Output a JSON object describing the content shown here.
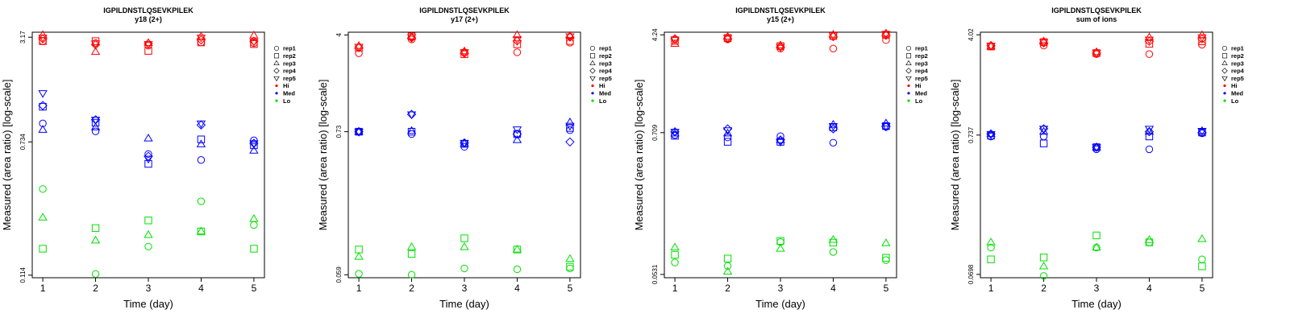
{
  "colors": {
    "Hi": "#ff0000",
    "Med": "#0000ff",
    "Lo": "#00e000"
  },
  "shape_icons": {
    "rep1": "open-circle",
    "rep2": "open-square",
    "rep3": "open-triangle-up",
    "rep4": "open-diamond",
    "rep5": "open-triangle-down",
    "Hi": "filled-dot",
    "Med": "filled-dot",
    "Lo": "filled-dot"
  },
  "chart_data": [
    {
      "type": "scatter",
      "title": "IGPILDNSTLQSEVKPILEK",
      "subtitle": "y18 (2+)",
      "xlabel": "Time (day)",
      "ylabel": "Measured (area ratio) [log-scale]",
      "log_y": true,
      "xlim": [
        0.8,
        5.2
      ],
      "ylim": [
        0.11,
        3.4
      ],
      "x_ticks": [
        1,
        2,
        3,
        4,
        5
      ],
      "y_ticks": [
        0.114,
        0.734,
        3.17
      ],
      "y_tick_labels": [
        "0.114",
        "0.734",
        "3.17"
      ],
      "grid": false,
      "legend": [
        "rep1",
        "rep2",
        "rep3",
        "rep4",
        "rep5",
        "Hi",
        "Med",
        "Lo"
      ],
      "legend_position": "right",
      "series": [
        {
          "rep": "rep1",
          "level": "Hi",
          "x": [
            1,
            2,
            3,
            4,
            5
          ],
          "y": [
            3.0,
            2.92,
            2.82,
            2.95,
            2.92
          ]
        },
        {
          "rep": "rep2",
          "level": "Hi",
          "x": [
            1,
            2,
            3,
            4,
            5
          ],
          "y": [
            3.0,
            3.0,
            2.62,
            2.95,
            2.88
          ]
        },
        {
          "rep": "rep3",
          "level": "Hi",
          "x": [
            1,
            2,
            3,
            4,
            5
          ],
          "y": [
            3.27,
            2.58,
            2.92,
            3.2,
            3.25
          ]
        },
        {
          "rep": "rep4",
          "level": "Hi",
          "x": [
            1,
            2,
            3,
            4,
            5
          ],
          "y": [
            3.1,
            2.85,
            2.9,
            3.05,
            3.0
          ]
        },
        {
          "rep": "rep5",
          "level": "Hi",
          "x": [
            1,
            2,
            3,
            4,
            5
          ],
          "y": [
            3.15,
            2.9,
            2.88,
            3.15,
            2.98
          ]
        },
        {
          "rep": "rep1",
          "level": "Med",
          "x": [
            1,
            2,
            3,
            4,
            5
          ],
          "y": [
            0.95,
            0.85,
            0.62,
            0.57,
            0.75
          ]
        },
        {
          "rep": "rep2",
          "level": "Med",
          "x": [
            1,
            2,
            3,
            4,
            5
          ],
          "y": [
            1.2,
            0.96,
            0.54,
            0.76,
            0.7
          ]
        },
        {
          "rep": "rep3",
          "level": "Med",
          "x": [
            1,
            2,
            3,
            4,
            5
          ],
          "y": [
            0.87,
            0.9,
            0.77,
            0.71,
            0.65
          ]
        },
        {
          "rep": "rep4",
          "level": "Med",
          "x": [
            1,
            2,
            3,
            4,
            5
          ],
          "y": [
            1.22,
            1.0,
            0.6,
            0.93,
            0.72
          ]
        },
        {
          "rep": "rep5",
          "level": "Med",
          "x": [
            1,
            2,
            3,
            4,
            5
          ],
          "y": [
            1.45,
            1.0,
            0.58,
            0.95,
            0.72
          ]
        },
        {
          "rep": "rep1",
          "level": "Lo",
          "x": [
            1,
            2,
            3,
            4,
            5
          ],
          "y": [
            0.38,
            0.116,
            0.17,
            0.32,
            0.23
          ]
        },
        {
          "rep": "rep2",
          "level": "Lo",
          "x": [
            1,
            2,
            3,
            4,
            5
          ],
          "y": [
            0.165,
            0.22,
            0.245,
            0.21,
            0.165
          ]
        },
        {
          "rep": "rep3",
          "level": "Lo",
          "x": [
            1,
            2,
            3,
            4,
            5
          ],
          "y": [
            0.255,
            0.185,
            0.2,
            0.21,
            0.25
          ]
        }
      ]
    },
    {
      "type": "scatter",
      "title": "IGPILDNSTLQSEVKPILEK",
      "subtitle": "y17 (2+)",
      "xlabel": "Time (day)",
      "ylabel": "Measured (area ratio) [log-scale]",
      "log_y": true,
      "xlim": [
        0.8,
        5.2
      ],
      "ylim": [
        0.056,
        4.2
      ],
      "x_ticks": [
        1,
        2,
        3,
        4,
        5
      ],
      "y_ticks": [
        0.059,
        0.73,
        4
      ],
      "y_tick_labels": [
        "0.059",
        "0.73",
        "4"
      ],
      "grid": false,
      "legend": [
        "rep1",
        "rep2",
        "rep3",
        "rep4",
        "rep5",
        "Hi",
        "Med",
        "Lo"
      ],
      "legend_position": "right",
      "series": [
        {
          "rep": "rep1",
          "level": "Hi",
          "x": [
            1,
            2,
            3,
            4,
            5
          ],
          "y": [
            2.9,
            3.7,
            2.95,
            2.95,
            3.5
          ]
        },
        {
          "rep": "rep2",
          "level": "Hi",
          "x": [
            1,
            2,
            3,
            4,
            5
          ],
          "y": [
            3.2,
            3.9,
            2.85,
            3.4,
            3.6
          ]
        },
        {
          "rep": "rep3",
          "level": "Hi",
          "x": [
            1,
            2,
            3,
            4,
            5
          ],
          "y": [
            3.3,
            3.9,
            3.0,
            4.0,
            3.95
          ]
        },
        {
          "rep": "rep4",
          "level": "Hi",
          "x": [
            1,
            2,
            3,
            4,
            5
          ],
          "y": [
            3.2,
            3.8,
            2.9,
            3.6,
            3.85
          ]
        },
        {
          "rep": "rep5",
          "level": "Hi",
          "x": [
            1,
            2,
            3,
            4,
            5
          ],
          "y": [
            3.25,
            3.85,
            2.95,
            3.7,
            3.9
          ]
        },
        {
          "rep": "rep1",
          "level": "Med",
          "x": [
            1,
            2,
            3,
            4,
            5
          ],
          "y": [
            0.73,
            0.7,
            0.56,
            0.7,
            0.75
          ]
        },
        {
          "rep": "rep2",
          "level": "Med",
          "x": [
            1,
            2,
            3,
            4,
            5
          ],
          "y": [
            0.73,
            0.73,
            0.59,
            0.7,
            0.78
          ]
        },
        {
          "rep": "rep3",
          "level": "Med",
          "x": [
            1,
            2,
            3,
            4,
            5
          ],
          "y": [
            0.73,
            0.74,
            0.59,
            0.63,
            0.86
          ]
        },
        {
          "rep": "rep4",
          "level": "Med",
          "x": [
            1,
            2,
            3,
            4,
            5
          ],
          "y": [
            0.73,
            0.99,
            0.6,
            0.7,
            0.61
          ]
        },
        {
          "rep": "rep5",
          "level": "Med",
          "x": [
            1,
            2,
            3,
            4,
            5
          ],
          "y": [
            0.73,
            0.99,
            0.6,
            0.76,
            0.81
          ]
        },
        {
          "rep": "rep1",
          "level": "Lo",
          "x": [
            1,
            2,
            3,
            4,
            5
          ],
          "y": [
            0.06,
            0.059,
            0.066,
            0.065,
            0.066
          ]
        },
        {
          "rep": "rep2",
          "level": "Lo",
          "x": [
            1,
            2,
            3,
            4,
            5
          ],
          "y": [
            0.092,
            0.085,
            0.112,
            0.092,
            0.068
          ]
        },
        {
          "rep": "rep3",
          "level": "Lo",
          "x": [
            1,
            2,
            3,
            4,
            5
          ],
          "y": [
            0.081,
            0.096,
            0.096,
            0.092,
            0.078
          ]
        }
      ]
    },
    {
      "type": "scatter",
      "title": "IGPILDNSTLQSEVKPILEK",
      "subtitle": "y15 (2+)",
      "xlabel": "Time (day)",
      "ylabel": "Measured (area ratio) [log-scale]",
      "log_y": true,
      "xlim": [
        0.8,
        5.2
      ],
      "ylim": [
        0.05,
        4.45
      ],
      "x_ticks": [
        1,
        2,
        3,
        4,
        5
      ],
      "y_ticks": [
        0.0531,
        0.709,
        4.24
      ],
      "y_tick_labels": [
        "0.0531",
        "0.709",
        "4.24"
      ],
      "grid": false,
      "legend": [
        "rep1",
        "rep2",
        "rep3",
        "rep4",
        "rep5",
        "Hi",
        "Med",
        "Lo"
      ],
      "legend_position": "right",
      "series": [
        {
          "rep": "rep1",
          "level": "Hi",
          "x": [
            1,
            2,
            3,
            4,
            5
          ],
          "y": [
            3.9,
            3.9,
            3.3,
            3.3,
            3.85
          ]
        },
        {
          "rep": "rep2",
          "level": "Hi",
          "x": [
            1,
            2,
            3,
            4,
            5
          ],
          "y": [
            3.8,
            4.0,
            3.45,
            4.15,
            4.25
          ]
        },
        {
          "rep": "rep3",
          "level": "Hi",
          "x": [
            1,
            2,
            3,
            4,
            5
          ],
          "y": [
            3.6,
            4.1,
            3.5,
            4.25,
            4.35
          ]
        },
        {
          "rep": "rep4",
          "level": "Hi",
          "x": [
            1,
            2,
            3,
            4,
            5
          ],
          "y": [
            3.95,
            3.95,
            3.4,
            4.1,
            4.2
          ]
        },
        {
          "rep": "rep5",
          "level": "Hi",
          "x": [
            1,
            2,
            3,
            4,
            5
          ],
          "y": [
            3.9,
            4.0,
            3.4,
            4.2,
            4.3
          ]
        },
        {
          "rep": "rep1",
          "level": "Med",
          "x": [
            1,
            2,
            3,
            4,
            5
          ],
          "y": [
            0.68,
            0.65,
            0.665,
            0.59,
            0.79
          ]
        },
        {
          "rep": "rep2",
          "level": "Med",
          "x": [
            1,
            2,
            3,
            4,
            5
          ],
          "y": [
            0.67,
            0.6,
            0.6,
            0.78,
            0.8
          ]
        },
        {
          "rep": "rep3",
          "level": "Med",
          "x": [
            1,
            2,
            3,
            4,
            5
          ],
          "y": [
            0.7,
            0.7,
            0.62,
            0.82,
            0.84
          ]
        },
        {
          "rep": "rep4",
          "level": "Med",
          "x": [
            1,
            2,
            3,
            4,
            5
          ],
          "y": [
            0.72,
            0.76,
            0.62,
            0.76,
            0.79
          ]
        },
        {
          "rep": "rep5",
          "level": "Med",
          "x": [
            1,
            2,
            3,
            4,
            5
          ],
          "y": [
            0.72,
            0.74,
            0.6,
            0.8,
            0.8
          ]
        },
        {
          "rep": "rep1",
          "level": "Lo",
          "x": [
            1,
            2,
            3,
            4,
            5
          ],
          "y": [
            0.066,
            0.062,
            0.096,
            0.08,
            0.069
          ]
        },
        {
          "rep": "rep2",
          "level": "Lo",
          "x": [
            1,
            2,
            3,
            4,
            5
          ],
          "y": [
            0.076,
            0.071,
            0.098,
            0.095,
            0.072
          ]
        },
        {
          "rep": "rep3",
          "level": "Lo",
          "x": [
            1,
            2,
            3,
            4,
            5
          ],
          "y": [
            0.087,
            0.056,
            0.085,
            0.1,
            0.094
          ]
        }
      ]
    },
    {
      "type": "scatter",
      "title": "IGPILDNSTLQSEVKPILEK",
      "subtitle": "sum of ions",
      "xlabel": "Time (day)",
      "ylabel": "Measured (area ratio) [log-scale]",
      "log_y": true,
      "xlim": [
        0.8,
        5.2
      ],
      "ylim": [
        0.066,
        4.2
      ],
      "x_ticks": [
        1,
        2,
        3,
        4,
        5
      ],
      "y_ticks": [
        0.0698,
        0.737,
        4.02
      ],
      "y_tick_labels": [
        "0.0698",
        "0.737",
        "4.02"
      ],
      "grid": false,
      "legend": [
        "rep1",
        "rep2",
        "rep3",
        "rep4",
        "rep5",
        "Hi",
        "Med",
        "Lo"
      ],
      "legend_position": "right",
      "series": [
        {
          "rep": "rep1",
          "level": "Hi",
          "x": [
            1,
            2,
            3,
            4,
            5
          ],
          "y": [
            3.3,
            3.35,
            2.9,
            2.9,
            3.4
          ]
        },
        {
          "rep": "rep2",
          "level": "Hi",
          "x": [
            1,
            2,
            3,
            4,
            5
          ],
          "y": [
            3.3,
            3.55,
            2.95,
            3.45,
            3.6
          ]
        },
        {
          "rep": "rep3",
          "level": "Hi",
          "x": [
            1,
            2,
            3,
            4,
            5
          ],
          "y": [
            3.3,
            3.6,
            3.0,
            3.85,
            4.0
          ]
        },
        {
          "rep": "rep4",
          "level": "Hi",
          "x": [
            1,
            2,
            3,
            4,
            5
          ],
          "y": [
            3.35,
            3.5,
            2.95,
            3.6,
            3.75
          ]
        },
        {
          "rep": "rep5",
          "level": "Hi",
          "x": [
            1,
            2,
            3,
            4,
            5
          ],
          "y": [
            3.35,
            3.55,
            2.95,
            3.7,
            3.85
          ]
        },
        {
          "rep": "rep1",
          "level": "Med",
          "x": [
            1,
            2,
            3,
            4,
            5
          ],
          "y": [
            0.72,
            0.72,
            0.58,
            0.58,
            0.76
          ]
        },
        {
          "rep": "rep2",
          "level": "Med",
          "x": [
            1,
            2,
            3,
            4,
            5
          ],
          "y": [
            0.73,
            0.64,
            0.6,
            0.72,
            0.77
          ]
        },
        {
          "rep": "rep3",
          "level": "Med",
          "x": [
            1,
            2,
            3,
            4,
            5
          ],
          "y": [
            0.75,
            0.78,
            0.6,
            0.78,
            0.79
          ]
        },
        {
          "rep": "rep4",
          "level": "Med",
          "x": [
            1,
            2,
            3,
            4,
            5
          ],
          "y": [
            0.75,
            0.82,
            0.6,
            0.78,
            0.77
          ]
        },
        {
          "rep": "rep5",
          "level": "Med",
          "x": [
            1,
            2,
            3,
            4,
            5
          ],
          "y": [
            0.75,
            0.82,
            0.6,
            0.82,
            0.79
          ]
        },
        {
          "rep": "rep1",
          "level": "Lo",
          "x": [
            1,
            2,
            3,
            4,
            5
          ],
          "y": [
            0.11,
            0.068,
            0.11,
            0.12,
            0.09
          ]
        },
        {
          "rep": "rep2",
          "level": "Lo",
          "x": [
            1,
            2,
            3,
            4,
            5
          ],
          "y": [
            0.09,
            0.093,
            0.135,
            0.12,
            0.08
          ]
        },
        {
          "rep": "rep3",
          "level": "Lo",
          "x": [
            1,
            2,
            3,
            4,
            5
          ],
          "y": [
            0.12,
            0.08,
            0.11,
            0.125,
            0.127
          ]
        }
      ]
    }
  ]
}
